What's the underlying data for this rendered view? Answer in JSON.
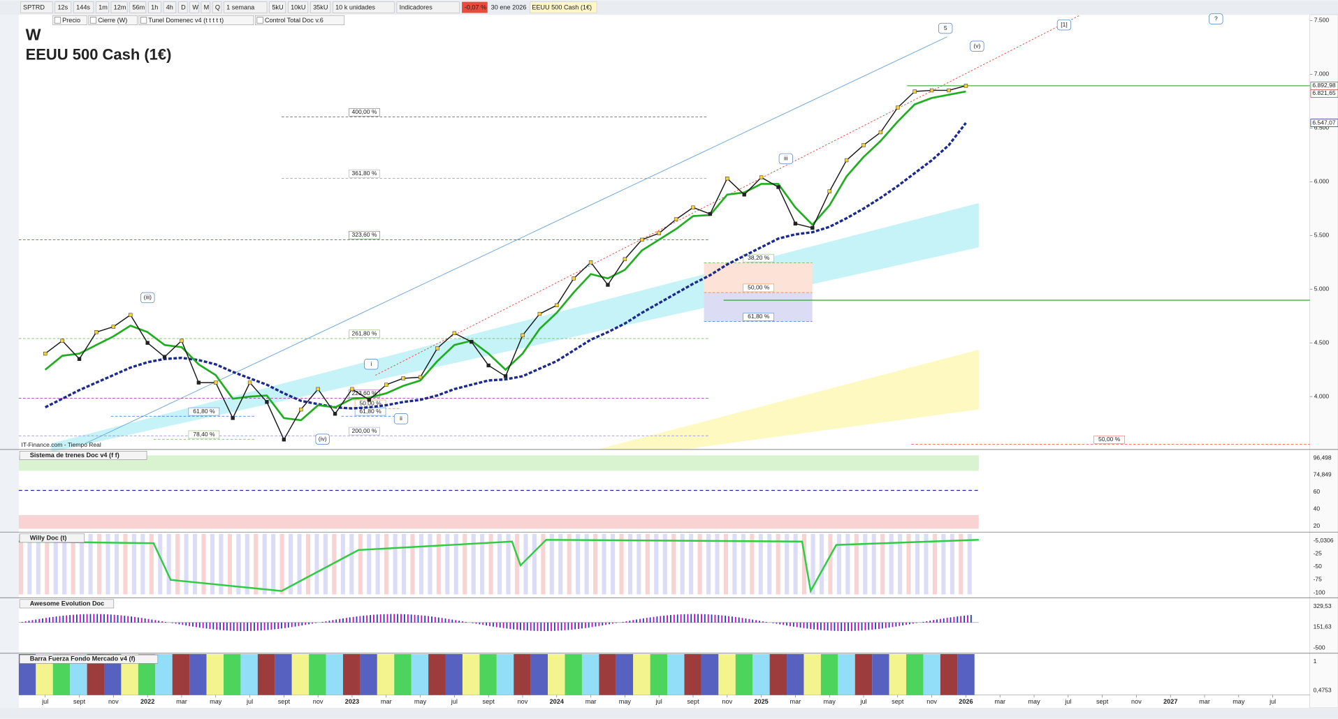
{
  "toolbar": {
    "symbol": "SPTRD",
    "timeframes": [
      "12s",
      "144s",
      "1m",
      "12m",
      "56m",
      "1h",
      "4h",
      "D",
      "W",
      "M",
      "Q"
    ],
    "period": "1 semana",
    "units": [
      "5kU",
      "10kU",
      "35kU"
    ],
    "unit_size": "10 k unidades",
    "indicators": "Indicadores",
    "change": "-0,07 %",
    "date": "30 ene 2026",
    "instrument": "EEUU 500 Cash (1€)"
  },
  "legend_bar": [
    "Precio",
    "Cierre (W)",
    "Tunel Domenec v4 (t t t t t)",
    "Control Total Doc v.6"
  ],
  "chart_data": {
    "type": "line",
    "title": "W",
    "subtitle": "EEUU 500 Cash (1€)",
    "source": "IT-Finance.com - Tiempo Real",
    "time_axis": [
      "jul",
      "sept",
      "nov",
      "2022",
      "mar",
      "may",
      "jul",
      "sept",
      "nov",
      "2023",
      "mar",
      "may",
      "jul",
      "sept",
      "nov",
      "2024",
      "mar",
      "may",
      "jul",
      "sept",
      "nov",
      "2025",
      "mar",
      "may",
      "jul",
      "sept",
      "nov",
      "2026",
      "mar",
      "may",
      "jul",
      "sept",
      "nov",
      "2027",
      "mar",
      "may",
      "jul"
    ],
    "ylim": [
      3508,
      7547
    ],
    "yticks": [
      {
        "value": 4000,
        "label": "4.000"
      },
      {
        "value": 4500,
        "label": "4.500"
      },
      {
        "value": 5000,
        "label": "5.000"
      },
      {
        "value": 5500,
        "label": "5.500"
      },
      {
        "value": 6000,
        "label": "6.000"
      },
      {
        "value": 6500,
        "label": "6.500"
      },
      {
        "value": 7000,
        "label": "7.000"
      },
      {
        "value": 7500,
        "label": "7.500"
      }
    ],
    "price": {
      "color": "#1a1a1a",
      "values": [
        4400,
        4520,
        4350,
        4600,
        4650,
        4760,
        4500,
        4370,
        4520,
        4130,
        4130,
        3800,
        4130,
        3950,
        3600,
        3880,
        4070,
        3840,
        4070,
        3970,
        4110,
        4170,
        4180,
        4450,
        4590,
        4510,
        4290,
        4190,
        4570,
        4770,
        4850,
        5100,
        5250,
        5040,
        5280,
        5460,
        5520,
        5650,
        5760,
        5700,
        6030,
        5880,
        6040,
        5950,
        5610,
        5570,
        5910,
        6200,
        6340,
        6460,
        6690,
        6840,
        6850,
        6850,
        6893
      ]
    },
    "fast_ma": {
      "color": "#1fae1f",
      "values": [
        4250,
        4380,
        4400,
        4480,
        4560,
        4660,
        4600,
        4480,
        4460,
        4300,
        4200,
        3980,
        4000,
        4010,
        3800,
        3780,
        3920,
        3900,
        3980,
        3990,
        4030,
        4100,
        4150,
        4330,
        4480,
        4520,
        4400,
        4250,
        4400,
        4630,
        4780,
        4970,
        5140,
        5100,
        5180,
        5360,
        5460,
        5560,
        5680,
        5690,
        5880,
        5900,
        5980,
        5980,
        5760,
        5600,
        5780,
        6050,
        6230,
        6380,
        6560,
        6720,
        6780,
        6810,
        6840
      ]
    },
    "slow_ma": {
      "color": "#1b2a8c",
      "values": [
        3900,
        3980,
        4060,
        4130,
        4200,
        4270,
        4320,
        4350,
        4360,
        4340,
        4300,
        4230,
        4170,
        4110,
        4030,
        3960,
        3930,
        3900,
        3890,
        3900,
        3920,
        3950,
        3970,
        4010,
        4070,
        4110,
        4150,
        4160,
        4190,
        4260,
        4330,
        4430,
        4530,
        4600,
        4680,
        4780,
        4870,
        4960,
        5050,
        5130,
        5230,
        5310,
        5390,
        5470,
        5510,
        5530,
        5580,
        5660,
        5750,
        5850,
        5960,
        6080,
        6200,
        6340,
        6547
      ]
    },
    "price_tags": [
      {
        "value": 6892.98,
        "label": "6.892,98",
        "color": "#1a9a1a"
      },
      {
        "value": 6821.65,
        "label": "6.821,65",
        "color": "#c0392b"
      },
      {
        "value": 6547.07,
        "label": "6.547,07",
        "color": "#1b2a8c"
      }
    ],
    "levels": [
      {
        "value": 6892.98,
        "color": "#1a9a1a"
      },
      {
        "value": 4897,
        "color": "#1a9a1a"
      }
    ],
    "fib_levels": [
      {
        "label": "400,00 %",
        "value": 6603,
        "color": "#555"
      },
      {
        "label": "361,80 %",
        "value": 6032,
        "color": "#999"
      },
      {
        "label": "323,60 %",
        "value": 5460,
        "color": "#1a7a1a"
      },
      {
        "label": "261,80 %",
        "value": 4540,
        "color": "#6ab04c"
      },
      {
        "label": "223,60 %",
        "value": 3984,
        "color": "#8e2a9a"
      },
      {
        "label": "200,00 %",
        "value": 3635,
        "color": "#8888cc"
      },
      {
        "label": "61,80 %",
        "value": 3817,
        "color": "#2a6fd0"
      },
      {
        "label": "78,40 %",
        "value": 3603,
        "color": "#6ab04c"
      },
      {
        "label": "50,00 %",
        "value": 3889,
        "color": "#e67e22"
      },
      {
        "label": "61,80 %",
        "value": 3817,
        "color": "#2a6fd0"
      },
      {
        "label": "38,20 %",
        "value": 5246,
        "color": "#6ab04c"
      },
      {
        "label": "50,00 %",
        "value": 4968,
        "color": "#e67e22"
      },
      {
        "label": "61,80 %",
        "value": 4698,
        "color": "#2a6fd0"
      },
      {
        "label": "50,00 %",
        "value": 3556,
        "color": "#e74c3c"
      }
    ],
    "wave_labels": [
      "5",
      "(v)",
      "[1]",
      "?",
      "iii",
      "(iii)",
      "i",
      "ii",
      "(iv)"
    ]
  },
  "panels": [
    {
      "title": "Sistema de trenes Doc v4 (f f)",
      "axis": [
        "96,498",
        "74,849",
        "60",
        "40",
        "20"
      ]
    },
    {
      "title": "Willy Doc (t)",
      "axis": [
        "-5,0306",
        "-25",
        "-50",
        "-75",
        "-100"
      ]
    },
    {
      "title": "Awesome Evolution Doc",
      "axis": [
        "329,53",
        "151,63",
        "-500"
      ]
    },
    {
      "title": "Barra Fuerza Fondo Mercado v4 (f)",
      "axis": [
        "1",
        "0,4753"
      ]
    }
  ]
}
